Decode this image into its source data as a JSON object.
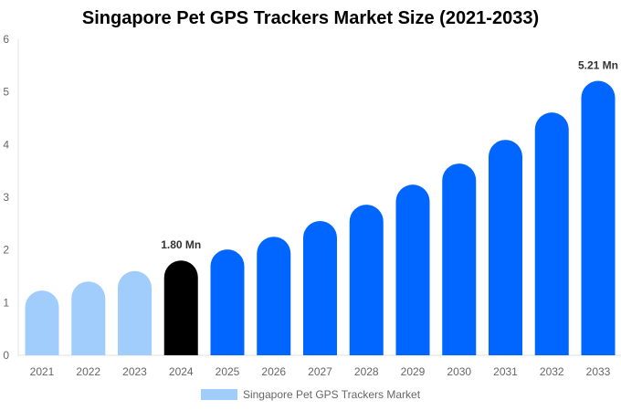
{
  "chart_data": {
    "type": "bar",
    "title": "Singapore Pet GPS Trackers Market Size (2021-2033)",
    "categories": [
      "2021",
      "2022",
      "2023",
      "2024",
      "2025",
      "2026",
      "2027",
      "2028",
      "2029",
      "2030",
      "2031",
      "2032",
      "2033"
    ],
    "series": [
      {
        "name": "Singapore Pet GPS Trackers Market",
        "values": [
          1.23,
          1.4,
          1.6,
          1.8,
          2.01,
          2.25,
          2.55,
          2.86,
          3.24,
          3.64,
          4.09,
          4.61,
          5.21
        ]
      }
    ],
    "ylim": [
      0,
      6
    ],
    "yticks": [
      0,
      1,
      2,
      3,
      4,
      5,
      6
    ],
    "grid": false,
    "legend": "bottom",
    "data_labels": [
      {
        "category": "2024",
        "text": "1.80 Mn"
      },
      {
        "category": "2033",
        "text": "5.21 Mn"
      }
    ],
    "colors": {
      "historical": "#a0cdfc",
      "current": "#000000",
      "forecast": "#0066ff",
      "legend": "#a0cdfc"
    }
  }
}
